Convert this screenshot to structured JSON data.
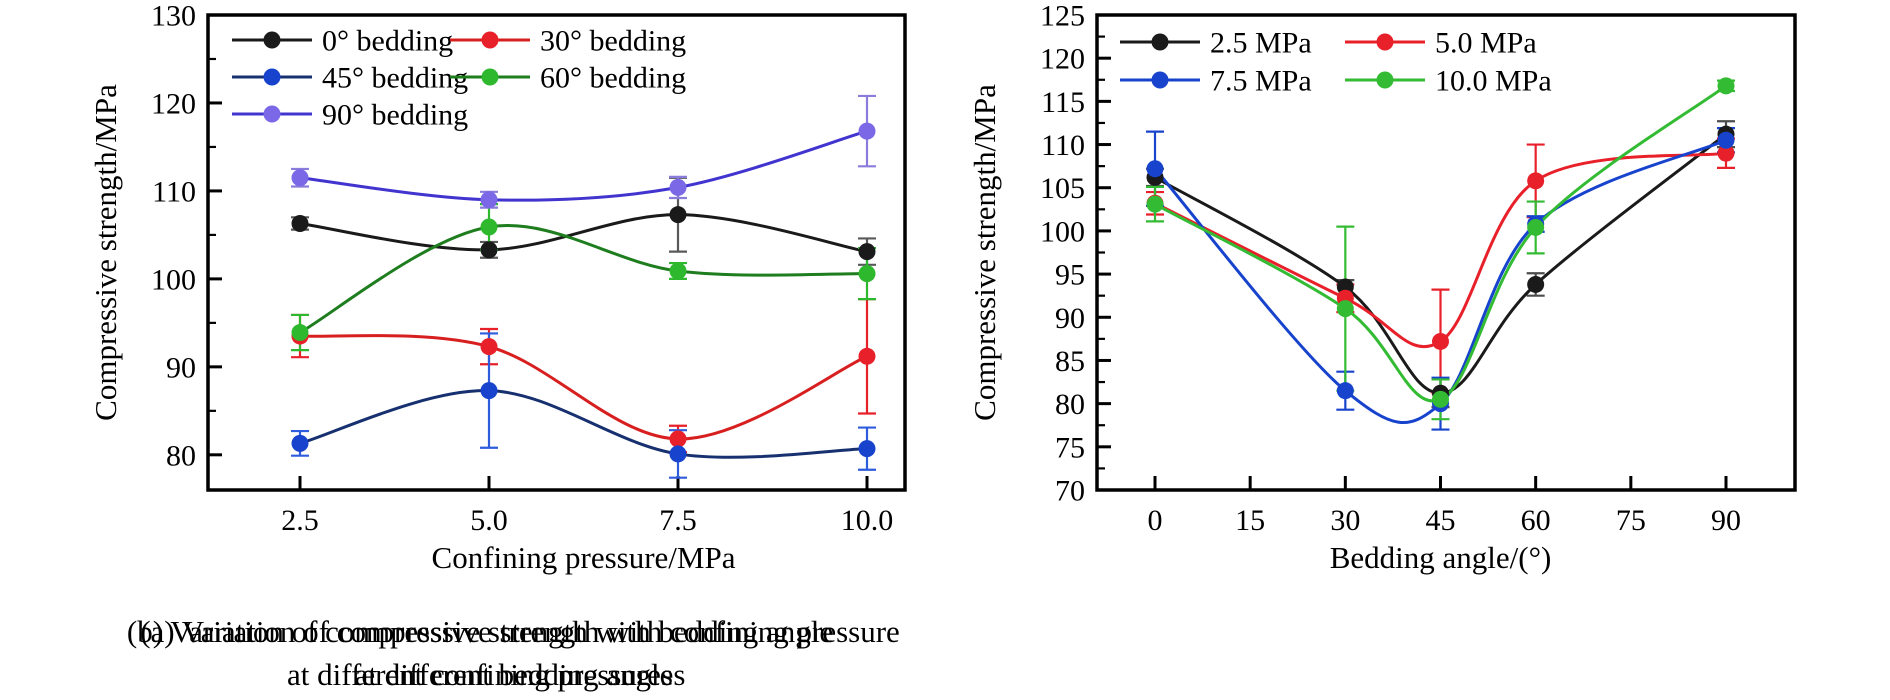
{
  "figure": {
    "panels": [
      {
        "caption_line1": "(a) Variation of compressive strength with confining pressure",
        "caption_line2": "at different bedding angles"
      },
      {
        "caption_line1": "(b) Variation of compressive strength with bedding angle",
        "caption_line2": "at different confining pressures"
      }
    ]
  },
  "chart_data": [
    {
      "type": "line",
      "title": "",
      "xlabel": "Confining pressure/MPa",
      "ylabel": "Compressive strength/MPa",
      "x": [
        2.5,
        5.0,
        7.5,
        10.0
      ],
      "xticks": [
        2.5,
        5.0,
        7.5,
        10.0
      ],
      "xtick_labels": [
        "2.5",
        "5.0",
        "7.5",
        "10.0"
      ],
      "ylim": [
        76,
        130
      ],
      "yticks": [
        80,
        90,
        100,
        110,
        120,
        130
      ],
      "ytick_labels": [
        "80",
        "90",
        "100",
        "110",
        "120",
        "130"
      ],
      "yticks_minor": [
        85,
        95,
        105,
        115,
        125
      ],
      "grid": false,
      "legend_position": "top-left",
      "series": [
        {
          "name": "0° bedding",
          "marker_color": "#1a1a1a",
          "line_color": "#1a1a1a",
          "error_color": "#595959",
          "values": [
            106.3,
            103.3,
            107.3,
            103.1
          ],
          "err": [
            0.7,
            0.9,
            4.2,
            1.5
          ]
        },
        {
          "name": "30° bedding",
          "marker_color": "#e8202a",
          "line_color": "#d81f1f",
          "error_color": "#e8202a",
          "values": [
            93.5,
            92.3,
            81.8,
            91.2
          ],
          "err": [
            2.4,
            2.0,
            1.5,
            6.5
          ]
        },
        {
          "name": "45° bedding",
          "marker_color": "#1743cd",
          "line_color": "#17306f",
          "error_color": "#2e5cdc",
          "values": [
            81.3,
            87.3,
            80.1,
            80.7
          ],
          "err": [
            1.4,
            6.5,
            2.7,
            2.4
          ]
        },
        {
          "name": "60° bedding",
          "marker_color": "#2eb82e",
          "line_color": "#1e7d1e",
          "error_color": "#2eb82e",
          "values": [
            93.9,
            105.9,
            100.9,
            100.6
          ],
          "err": [
            2.0,
            2.6,
            0.9,
            2.9
          ]
        },
        {
          "name": "90° bedding",
          "marker_color": "#7b68e6",
          "line_color": "#4134cf",
          "error_color": "#8a7cdb",
          "values": [
            111.5,
            109.0,
            110.4,
            116.8
          ],
          "err": [
            1.0,
            0.9,
            1.2,
            4.0
          ]
        }
      ]
    },
    {
      "type": "line",
      "title": "",
      "xlabel": "Bedding angle/(°)",
      "ylabel": "Compressive strength/MPa",
      "x": [
        0,
        30,
        45,
        60,
        90
      ],
      "xticks": [
        0,
        15,
        30,
        45,
        60,
        75,
        90
      ],
      "xtick_labels": [
        "0",
        "15",
        "30",
        "45",
        "60",
        "75",
        "90"
      ],
      "ylim": [
        70,
        125
      ],
      "yticks": [
        70,
        75,
        80,
        85,
        90,
        95,
        100,
        105,
        110,
        115,
        120,
        125
      ],
      "ytick_labels": [
        "70",
        "75",
        "80",
        "85",
        "90",
        "95",
        "100",
        "105",
        "110",
        "115",
        "120",
        "125"
      ],
      "yticks_minor": [
        72.5,
        77.5,
        82.5,
        87.5,
        92.5,
        97.5,
        102.5,
        107.5,
        112.5,
        117.5,
        122.5
      ],
      "grid": false,
      "legend_position": "top-left",
      "series": [
        {
          "name": "2.5 MPa",
          "marker_color": "#1a1a1a",
          "line_color": "#1a1a1a",
          "error_color": "#4d4d4d",
          "values": [
            106.2,
            93.5,
            81.2,
            93.8,
            111.2
          ],
          "err": [
            1.0,
            0.8,
            1.6,
            1.3,
            1.5
          ]
        },
        {
          "name": "5.0 MPa",
          "marker_color": "#e8202a",
          "line_color": "#e8202a",
          "error_color": "#e8202a",
          "values": [
            103.2,
            92.2,
            87.2,
            105.8,
            109.0
          ],
          "err": [
            1.3,
            1.6,
            6.0,
            4.2,
            1.7
          ]
        },
        {
          "name": "7.5 MPa",
          "marker_color": "#1743cd",
          "line_color": "#1743cd",
          "error_color": "#1743cd",
          "values": [
            107.2,
            81.5,
            80.0,
            100.8,
            110.5
          ],
          "err": [
            4.3,
            2.2,
            3.0,
            0.9,
            1.4
          ]
        },
        {
          "name": "10.0 MPa",
          "marker_color": "#33bb33",
          "line_color": "#33bb33",
          "error_color": "#33bb33",
          "values": [
            103.1,
            91.0,
            80.5,
            100.4,
            116.8
          ],
          "err": [
            2.0,
            9.5,
            2.3,
            3.0,
            0.6
          ]
        }
      ]
    }
  ]
}
